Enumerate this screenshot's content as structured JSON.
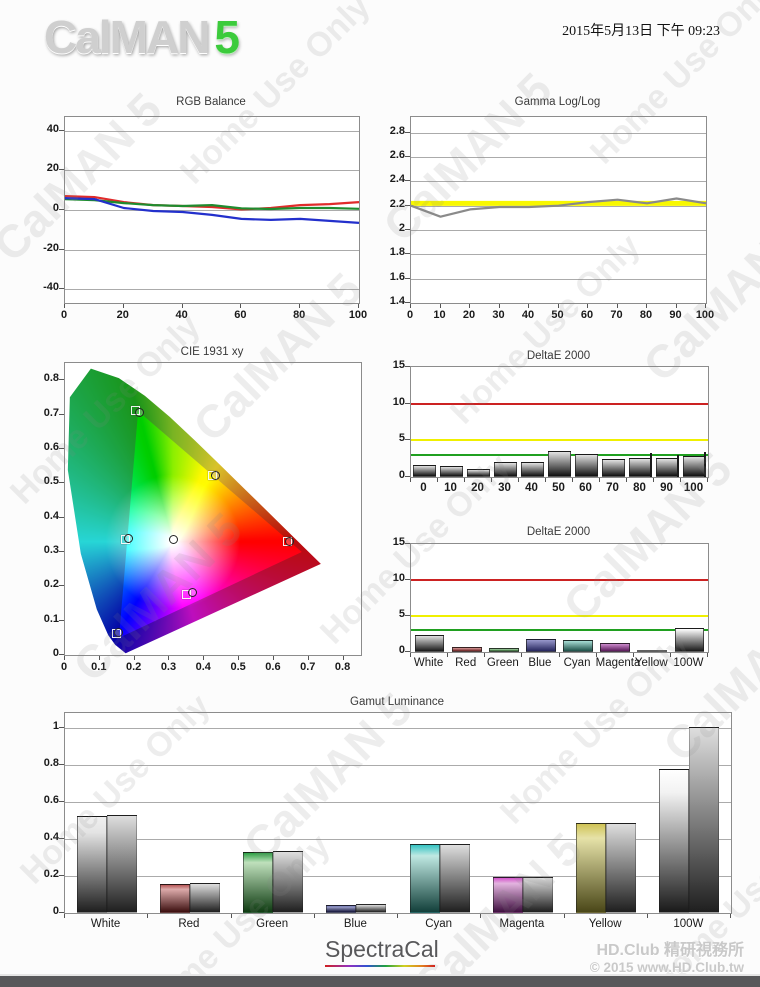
{
  "header": {
    "logo_text": "CalMAN",
    "logo_number": "5",
    "datetime": "2015年5月13日 下午 09:23"
  },
  "watermark": {
    "line1": "CalMAN 5",
    "line2": "Home Use Only"
  },
  "footer": {
    "brand": "SpectraCal",
    "club_line1": "HD.Club 精研視務所",
    "club_line2": "© 2015 www.HD.Club.tw"
  },
  "colors": {
    "grid": "#ababab",
    "plot_border": "#8c8c8c",
    "ref_red": "#cc2222",
    "ref_yellow": "#f0f000",
    "ref_green": "#20a020",
    "series_red": "#e02b2b",
    "series_green": "#1f8c2f",
    "series_blue": "#2330cc",
    "gamma_measured": "#8a8a8a",
    "gamma_target": "#f8f800"
  },
  "chart_data": [
    {
      "type": "line",
      "title": "RGB Balance",
      "xlim": [
        0,
        100
      ],
      "ylim": [
        -47,
        47
      ],
      "xticks": [
        0,
        20,
        40,
        60,
        80,
        100
      ],
      "yticks": [
        -40,
        -20,
        0,
        20,
        40
      ],
      "x": [
        0,
        10,
        20,
        30,
        40,
        50,
        60,
        70,
        80,
        90,
        100
      ],
      "series": [
        {
          "name": "Red",
          "color": "#e02b2b",
          "values": [
            7,
            6.5,
            4,
            2.5,
            2,
            1.5,
            0.3,
            1,
            2.5,
            3,
            4
          ]
        },
        {
          "name": "Green",
          "color": "#1f8c2f",
          "values": [
            5.5,
            5,
            3.5,
            2.5,
            2,
            2.5,
            0.8,
            0.5,
            1,
            1,
            0.6
          ]
        },
        {
          "name": "Blue",
          "color": "#2330cc",
          "values": [
            6,
            5.5,
            1,
            -0.5,
            -1,
            -2.5,
            -4.5,
            -5,
            -4.5,
            -5.5,
            -6.5
          ]
        }
      ]
    },
    {
      "type": "line",
      "title": "Gamma Log/Log",
      "xlim": [
        0,
        100
      ],
      "ylim": [
        1.4,
        2.93
      ],
      "xticks": [
        0,
        10,
        20,
        30,
        40,
        50,
        60,
        70,
        80,
        90,
        100
      ],
      "yticks": [
        1.4,
        1.6,
        1.8,
        2,
        2.2,
        2.4,
        2.6,
        2.8
      ],
      "x": [
        0,
        10,
        20,
        30,
        40,
        50,
        60,
        70,
        80,
        90,
        100
      ],
      "ref_line": {
        "value": 2.22,
        "color": "#f8f800",
        "width": 5
      },
      "series": [
        {
          "name": "Gamma",
          "color": "#8a8a8a",
          "values": [
            2.2,
            2.11,
            2.17,
            2.19,
            2.19,
            2.2,
            2.23,
            2.25,
            2.22,
            2.26,
            2.22
          ]
        }
      ]
    },
    {
      "type": "cie",
      "title": "CIE 1931 xy",
      "xlim": [
        0,
        0.85
      ],
      "ylim": [
        0,
        0.85
      ],
      "xticks": [
        0,
        0.1,
        0.2,
        0.3,
        0.4,
        0.5,
        0.6,
        0.7,
        0.8
      ],
      "yticks": [
        0,
        0.1,
        0.2,
        0.3,
        0.4,
        0.5,
        0.6,
        0.7,
        0.8
      ],
      "gamut_triangle": [
        [
          0.21,
          0.71
        ],
        [
          0.68,
          0.3
        ],
        [
          0.155,
          0.05
        ]
      ],
      "points": [
        {
          "name": "green",
          "target": [
            0.205,
            0.71
          ],
          "measured": [
            0.213,
            0.705
          ]
        },
        {
          "name": "yellow",
          "target": [
            0.425,
            0.52
          ],
          "measured": [
            0.432,
            0.522
          ]
        },
        {
          "name": "red",
          "target": [
            0.64,
            0.33
          ],
          "measured": [
            0.644,
            0.331
          ]
        },
        {
          "name": "magenta",
          "target": [
            0.35,
            0.175
          ],
          "measured": [
            0.366,
            0.182
          ]
        },
        {
          "name": "blue",
          "target": [
            0.15,
            0.062
          ],
          "measured": [
            0.153,
            0.065
          ]
        },
        {
          "name": "cyan",
          "target": [
            0.176,
            0.335
          ],
          "measured": [
            0.181,
            0.339
          ]
        },
        {
          "name": "white",
          "target": null,
          "measured": [
            0.313,
            0.336
          ]
        }
      ]
    },
    {
      "type": "bar",
      "title": "DeltaE 2000",
      "categories": [
        "0",
        "10",
        "20",
        "30",
        "40",
        "50",
        "60",
        "70",
        "80",
        "90",
        "100"
      ],
      "values": [
        1.7,
        1.5,
        1.1,
        2.1,
        2.0,
        3.6,
        3.2,
        2.4,
        2.6,
        2.6,
        2.9
      ],
      "ylim": [
        0,
        15
      ],
      "yticks": [
        0,
        5,
        10,
        15
      ],
      "ref_lines": [
        {
          "value": 10,
          "color": "#cc2222"
        },
        {
          "value": 5,
          "color": "#f0f000"
        },
        {
          "value": 3,
          "color": "#20a020"
        }
      ],
      "bar_colors": [
        [
          "#e2e2e2",
          "#101010"
        ],
        [
          "#e2e2e2",
          "#101010"
        ],
        [
          "#e2e2e2",
          "#101010"
        ],
        [
          "#e2e2e2",
          "#101010"
        ],
        [
          "#e2e2e2",
          "#101010"
        ],
        [
          "#e2e2e2",
          "#101010"
        ],
        [
          "#e2e2e2",
          "#101010"
        ],
        [
          "#e2e2e2",
          "#101010"
        ],
        [
          "#e2e2e2",
          "#101010"
        ],
        [
          "#e2e2e2",
          "#101010"
        ],
        [
          "#e2e2e2",
          "#101010"
        ]
      ],
      "marks": [
        {
          "index": 8,
          "value": 3.3
        },
        {
          "index": 9,
          "value": 2.95
        },
        {
          "index": 10,
          "value": 3.4
        }
      ],
      "bar_ratio": 0.84,
      "label_bold": true
    },
    {
      "type": "bar",
      "title": "DeltaE 2000",
      "categories": [
        "White",
        "Red",
        "Green",
        "Blue",
        "Cyan",
        "Magenta",
        "Yellow",
        "100W"
      ],
      "values": [
        2.4,
        0.75,
        0.55,
        1.75,
        1.65,
        1.3,
        0.3,
        3.3
      ],
      "ylim": [
        0,
        15
      ],
      "yticks": [
        0,
        5,
        10,
        15
      ],
      "ref_lines": [
        {
          "value": 10,
          "color": "#cc2222"
        },
        {
          "value": 5,
          "color": "#f0f000"
        },
        {
          "value": 3,
          "color": "#20a020"
        }
      ],
      "bar_colors": [
        [
          "#e0e0e0",
          "#1a1a1a"
        ],
        [
          "#d89898",
          "#6a2020"
        ],
        [
          "#a8d8a8",
          "#2a5a2a"
        ],
        [
          "#9898cc",
          "#26265e"
        ],
        [
          "#a8ded6",
          "#1e5048"
        ],
        [
          "#cc8acc",
          "#5a1a5a"
        ],
        [
          "#e0e09a",
          "#70702a"
        ],
        [
          "#ffffff",
          "#1a1a1a"
        ]
      ],
      "marks": [],
      "bar_ratio": 0.8,
      "label_bold": false
    },
    {
      "type": "grouped_bar",
      "title": "Gamut Luminance",
      "categories": [
        "White",
        "Red",
        "Green",
        "Blue",
        "Cyan",
        "Magenta",
        "Yellow",
        "100W"
      ],
      "series": [
        {
          "name": "measured",
          "values": [
            0.525,
            0.155,
            0.33,
            0.045,
            0.37,
            0.197,
            0.485,
            0.78
          ]
        },
        {
          "name": "target",
          "values": [
            0.527,
            0.16,
            0.335,
            0.046,
            0.373,
            0.197,
            0.488,
            1.005
          ]
        }
      ],
      "ylim": [
        0,
        1.08
      ],
      "yticks": [
        0,
        0.2,
        0.4,
        0.6,
        0.8,
        1
      ],
      "measured_colors": [
        [
          "#f0f0f0",
          "#e4e4e4",
          "#1f1f1f"
        ],
        [
          "#b85858",
          "#dcaaaa",
          "#3c0f0f"
        ],
        [
          "#2da144",
          "#bfe0bc",
          "#0f3c12"
        ],
        [
          "#6a6fb0",
          "#9a9ec8",
          "#15153a"
        ],
        [
          "#35c3c3",
          "#bfe8e2",
          "#123f3a"
        ],
        [
          "#d455cc",
          "#e3b4df",
          "#3f1040"
        ],
        [
          "#cfc355",
          "#e6e2a8",
          "#4a4718"
        ],
        [
          "#ffffff",
          "#f2f2f2",
          "#1a1a1a"
        ]
      ],
      "target_colors": [
        "#dedede",
        "#1f1f1f"
      ],
      "label_bold": false
    }
  ]
}
